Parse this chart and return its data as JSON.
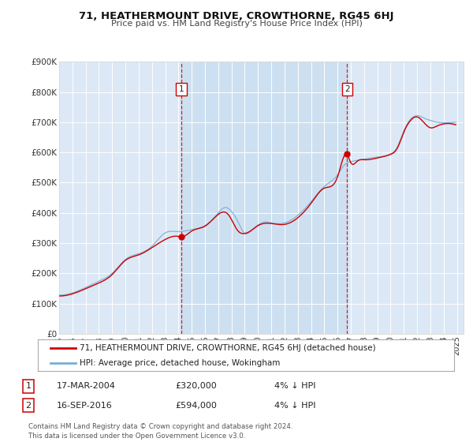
{
  "title": "71, HEATHERMOUNT DRIVE, CROWTHORNE, RG45 6HJ",
  "subtitle": "Price paid vs. HM Land Registry's House Price Index (HPI)",
  "background_color": "#ffffff",
  "plot_bg_color": "#dce8f5",
  "grid_color": "#ffffff",
  "shade_color": "#c8ddf0",
  "ylim": [
    0,
    900000
  ],
  "yticks": [
    0,
    100000,
    200000,
    300000,
    400000,
    500000,
    600000,
    700000,
    800000,
    900000
  ],
  "ytick_labels": [
    "£0",
    "£100K",
    "£200K",
    "£300K",
    "£400K",
    "£500K",
    "£600K",
    "£700K",
    "£800K",
    "£900K"
  ],
  "xlim_start": 1995.0,
  "xlim_end": 2025.5,
  "xticks": [
    1995,
    1996,
    1997,
    1998,
    1999,
    2000,
    2001,
    2002,
    2003,
    2004,
    2005,
    2006,
    2007,
    2008,
    2009,
    2010,
    2011,
    2012,
    2013,
    2014,
    2015,
    2016,
    2017,
    2018,
    2019,
    2020,
    2021,
    2022,
    2023,
    2024,
    2025
  ],
  "sale1_x": 2004.21,
  "sale1_y": 320000,
  "sale2_x": 2016.71,
  "sale2_y": 594000,
  "vline1_x": 2004.21,
  "vline2_x": 2016.71,
  "price_color": "#cc0000",
  "hpi_color": "#7aadd4",
  "legend_label_price": "71, HEATHERMOUNT DRIVE, CROWTHORNE, RG45 6HJ (detached house)",
  "legend_label_hpi": "HPI: Average price, detached house, Wokingham",
  "annotation1_label": "1",
  "annotation2_label": "2",
  "table_row1": [
    "1",
    "17-MAR-2004",
    "£320,000",
    "4% ↓ HPI"
  ],
  "table_row2": [
    "2",
    "16-SEP-2016",
    "£594,000",
    "4% ↓ HPI"
  ],
  "footer": "Contains HM Land Registry data © Crown copyright and database right 2024.\nThis data is licensed under the Open Government Licence v3.0."
}
